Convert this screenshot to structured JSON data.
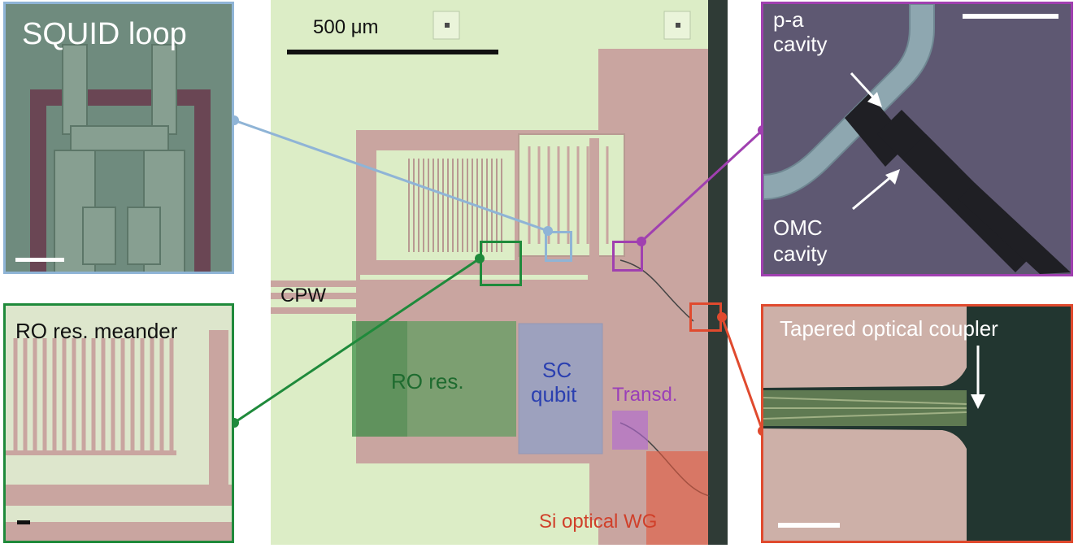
{
  "main": {
    "scale_bar_label": "500 μm",
    "cpw_label": "CPW",
    "ro_res_label": "RO res.",
    "qubit_label_line1": "SC",
    "qubit_label_line2": "qubit",
    "transducer_label": "Transd.",
    "waveguide_label": "Si optical WG"
  },
  "insets": {
    "squid": {
      "title": "SQUID loop",
      "frame_color": "#8fb4d6"
    },
    "meander": {
      "title": "RO res. meander",
      "frame_color": "#1f8a3b"
    },
    "cavity": {
      "title_line1": "p-a",
      "title_line2": "cavity",
      "omc_line1": "OMC",
      "omc_line2": "cavity",
      "frame_color": "#a040b0"
    },
    "coupler": {
      "title": "Tapered optical coupler",
      "frame_color": "#e04a2e"
    }
  },
  "colors": {
    "substrate": "#dcedc6",
    "metal": "#c9a5a0",
    "edge_trench": "#2f3b36",
    "ro_res_overlay": "#3c9a4a",
    "qubit_overlay": "#7a9fd8",
    "transducer_overlay": "#b06ad0",
    "waveguide_overlay": "#e2583e"
  }
}
